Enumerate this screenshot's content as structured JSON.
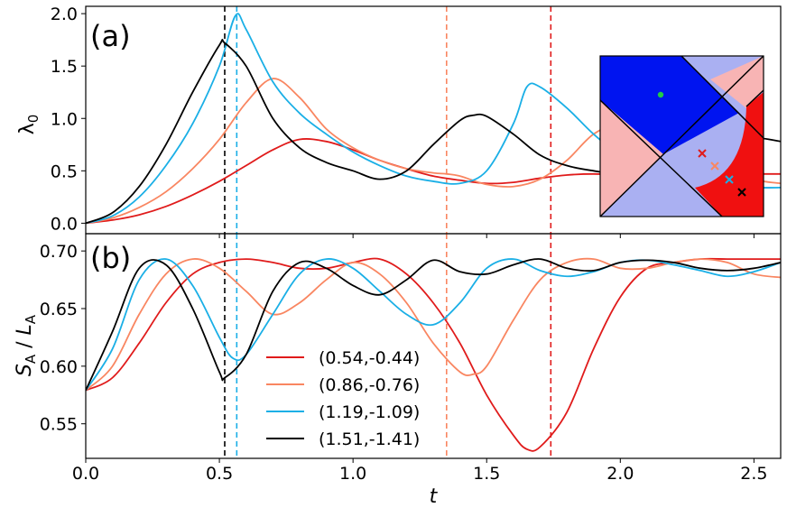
{
  "chart_data": [
    {
      "panel": "(a)",
      "type": "line",
      "xlabel": "t",
      "ylabel": "λ0",
      "xlim": [
        0,
        2.6
      ],
      "ylim": [
        -0.1,
        2.07
      ],
      "xticks": [
        0.0,
        0.5,
        1.0,
        1.5,
        2.0,
        2.5
      ],
      "yticks": [
        0.0,
        0.5,
        1.0,
        1.5,
        2.0
      ],
      "ytick_labels": [
        "0.0",
        "0.5",
        "1.0",
        "1.5",
        "2.0"
      ],
      "vlines": [
        {
          "x": 0.52,
          "color": "#000000"
        },
        {
          "x": 0.565,
          "color": "#1aafe6"
        },
        {
          "x": 1.35,
          "color": "#f98661"
        },
        {
          "x": 1.74,
          "color": "#e01b1b"
        }
      ],
      "series": [
        {
          "name": "(0.54,-0.44)",
          "color": "#e01b1b",
          "x": [
            0,
            0.1,
            0.2,
            0.3,
            0.4,
            0.5,
            0.6,
            0.7,
            0.8,
            0.9,
            1.0,
            1.1,
            1.2,
            1.3,
            1.4,
            1.5,
            1.6,
            1.7,
            1.8,
            1.9,
            2.0,
            2.1,
            2.2,
            2.3,
            2.4,
            2.5,
            2.6
          ],
          "y": [
            0,
            0.03,
            0.08,
            0.16,
            0.27,
            0.4,
            0.55,
            0.7,
            0.8,
            0.78,
            0.7,
            0.6,
            0.52,
            0.45,
            0.41,
            0.38,
            0.39,
            0.43,
            0.46,
            0.47,
            0.46,
            0.47,
            0.48,
            0.47,
            0.47,
            0.47,
            0.47
          ]
        },
        {
          "name": "(0.86,-0.76)",
          "color": "#f98661",
          "x": [
            0,
            0.1,
            0.2,
            0.3,
            0.4,
            0.5,
            0.6,
            0.7,
            0.8,
            0.9,
            1.0,
            1.1,
            1.2,
            1.3,
            1.35,
            1.4,
            1.5,
            1.6,
            1.7,
            1.8,
            1.9,
            2.0,
            2.1,
            2.2,
            2.3,
            2.4,
            2.5,
            2.6
          ],
          "y": [
            0,
            0.05,
            0.15,
            0.3,
            0.52,
            0.8,
            1.15,
            1.38,
            1.2,
            0.9,
            0.72,
            0.6,
            0.52,
            0.48,
            0.47,
            0.45,
            0.37,
            0.35,
            0.42,
            0.6,
            0.85,
            0.95,
            0.9,
            0.85,
            0.7,
            0.55,
            0.42,
            0.38
          ]
        },
        {
          "name": "(1.19,-1.09)",
          "color": "#1aafe6",
          "x": [
            0,
            0.1,
            0.2,
            0.3,
            0.4,
            0.5,
            0.56,
            0.6,
            0.7,
            0.8,
            0.9,
            1.0,
            1.1,
            1.2,
            1.3,
            1.4,
            1.5,
            1.6,
            1.65,
            1.7,
            1.8,
            1.9,
            2.0,
            2.1,
            2.2,
            2.3,
            2.4,
            2.5,
            2.6
          ],
          "y": [
            0,
            0.07,
            0.25,
            0.55,
            0.95,
            1.5,
            1.98,
            1.85,
            1.35,
            1.05,
            0.85,
            0.68,
            0.55,
            0.45,
            0.4,
            0.38,
            0.5,
            0.95,
            1.3,
            1.3,
            1.1,
            0.85,
            0.65,
            0.52,
            0.45,
            0.4,
            0.36,
            0.34,
            0.34
          ]
        },
        {
          "name": "(1.51,-1.41)",
          "color": "#000000",
          "x": [
            0,
            0.1,
            0.2,
            0.3,
            0.4,
            0.5,
            0.52,
            0.6,
            0.7,
            0.8,
            0.9,
            1.0,
            1.1,
            1.2,
            1.3,
            1.4,
            1.45,
            1.5,
            1.6,
            1.7,
            1.8,
            1.9,
            2.0,
            2.1,
            2.2,
            2.3,
            2.4,
            2.5,
            2.6
          ],
          "y": [
            0,
            0.1,
            0.35,
            0.75,
            1.25,
            1.7,
            1.72,
            1.5,
            1.0,
            0.72,
            0.58,
            0.5,
            0.42,
            0.5,
            0.75,
            0.98,
            1.03,
            1.02,
            0.85,
            0.65,
            0.55,
            0.5,
            0.47,
            0.52,
            0.62,
            0.75,
            0.82,
            0.82,
            0.78
          ]
        }
      ]
    },
    {
      "panel": "(b)",
      "type": "line",
      "xlabel": "t",
      "ylabel": "SA / LA",
      "xlim": [
        0,
        2.6
      ],
      "ylim": [
        0.52,
        0.715
      ],
      "xticks": [
        0.0,
        0.5,
        1.0,
        1.5,
        2.0,
        2.5
      ],
      "xtick_labels": [
        "0.0",
        "0.5",
        "1.0",
        "1.5",
        "2.0",
        "2.5"
      ],
      "yticks": [
        0.55,
        0.6,
        0.65,
        0.7
      ],
      "ytick_labels": [
        "0.55",
        "0.60",
        "0.65",
        "0.70"
      ],
      "vlines": [
        {
          "x": 0.52,
          "color": "#000000"
        },
        {
          "x": 0.565,
          "color": "#1aafe6"
        },
        {
          "x": 1.35,
          "color": "#f98661"
        },
        {
          "x": 1.74,
          "color": "#e01b1b"
        }
      ],
      "series": [
        {
          "name": "(0.54,-0.44)",
          "color": "#e01b1b",
          "x": [
            0,
            0.1,
            0.2,
            0.3,
            0.4,
            0.5,
            0.6,
            0.7,
            0.8,
            0.9,
            1.0,
            1.1,
            1.2,
            1.3,
            1.4,
            1.5,
            1.6,
            1.65,
            1.7,
            1.8,
            1.9,
            2.0,
            2.1,
            2.2,
            2.3,
            2.4,
            2.5,
            2.6
          ],
          "y": [
            0.579,
            0.59,
            0.62,
            0.655,
            0.68,
            0.69,
            0.693,
            0.69,
            0.685,
            0.685,
            0.69,
            0.693,
            0.68,
            0.655,
            0.62,
            0.575,
            0.54,
            0.528,
            0.53,
            0.56,
            0.615,
            0.66,
            0.685,
            0.69,
            0.693,
            0.693,
            0.693,
            0.693
          ]
        },
        {
          "name": "(0.86,-0.76)",
          "color": "#f98661",
          "x": [
            0,
            0.1,
            0.2,
            0.3,
            0.4,
            0.5,
            0.6,
            0.7,
            0.8,
            0.9,
            1.0,
            1.1,
            1.2,
            1.3,
            1.4,
            1.45,
            1.5,
            1.6,
            1.7,
            1.8,
            1.9,
            2.0,
            2.1,
            2.2,
            2.3,
            2.4,
            2.5,
            2.6
          ],
          "y": [
            0.579,
            0.6,
            0.645,
            0.68,
            0.693,
            0.685,
            0.665,
            0.645,
            0.655,
            0.675,
            0.69,
            0.68,
            0.655,
            0.62,
            0.595,
            0.593,
            0.6,
            0.64,
            0.675,
            0.69,
            0.693,
            0.685,
            0.685,
            0.69,
            0.693,
            0.69,
            0.68,
            0.677
          ]
        },
        {
          "name": "(1.19,-1.09)",
          "color": "#1aafe6",
          "x": [
            0,
            0.1,
            0.2,
            0.3,
            0.4,
            0.5,
            0.55,
            0.6,
            0.7,
            0.8,
            0.9,
            1.0,
            1.1,
            1.2,
            1.3,
            1.4,
            1.5,
            1.6,
            1.7,
            1.8,
            1.9,
            2.0,
            2.1,
            2.2,
            2.3,
            2.4,
            2.5,
            2.6
          ],
          "y": [
            0.579,
            0.615,
            0.675,
            0.693,
            0.67,
            0.625,
            0.607,
            0.61,
            0.645,
            0.68,
            0.693,
            0.685,
            0.665,
            0.645,
            0.636,
            0.655,
            0.685,
            0.693,
            0.683,
            0.678,
            0.682,
            0.69,
            0.692,
            0.688,
            0.683,
            0.678,
            0.682,
            0.69
          ]
        },
        {
          "name": "(1.51,-1.41)",
          "color": "#000000",
          "x": [
            0,
            0.1,
            0.2,
            0.3,
            0.4,
            0.5,
            0.52,
            0.6,
            0.7,
            0.8,
            0.9,
            1.0,
            1.1,
            1.2,
            1.3,
            1.4,
            1.5,
            1.6,
            1.7,
            1.8,
            1.9,
            2.0,
            2.1,
            2.2,
            2.3,
            2.4,
            2.5,
            2.6
          ],
          "y": [
            0.579,
            0.63,
            0.685,
            0.688,
            0.65,
            0.595,
            0.59,
            0.61,
            0.665,
            0.69,
            0.685,
            0.67,
            0.662,
            0.675,
            0.692,
            0.682,
            0.68,
            0.688,
            0.693,
            0.685,
            0.683,
            0.69,
            0.692,
            0.69,
            0.685,
            0.683,
            0.685,
            0.69
          ]
        }
      ]
    }
  ],
  "inset": {
    "colors": {
      "dark_blue": "#0014f0",
      "light_blue": "#aab0f2",
      "light_red": "#f8b4b4",
      "red": "#f01010",
      "green_dot": "#22cc44"
    },
    "markers": [
      {
        "symbol": "x",
        "color": "#e01b1b"
      },
      {
        "symbol": "x",
        "color": "#f98661"
      },
      {
        "symbol": "x",
        "color": "#1aafe6"
      },
      {
        "symbol": "x",
        "color": "#000000"
      }
    ]
  },
  "legend": {
    "location": "bottom-center",
    "entries": [
      {
        "label": "(0.54,-0.44)",
        "color": "#e01b1b"
      },
      {
        "label": "(0.86,-0.76)",
        "color": "#f98661"
      },
      {
        "label": "(1.19,-1.09)",
        "color": "#1aafe6"
      },
      {
        "label": "(1.51,-1.41)",
        "color": "#000000"
      }
    ]
  }
}
